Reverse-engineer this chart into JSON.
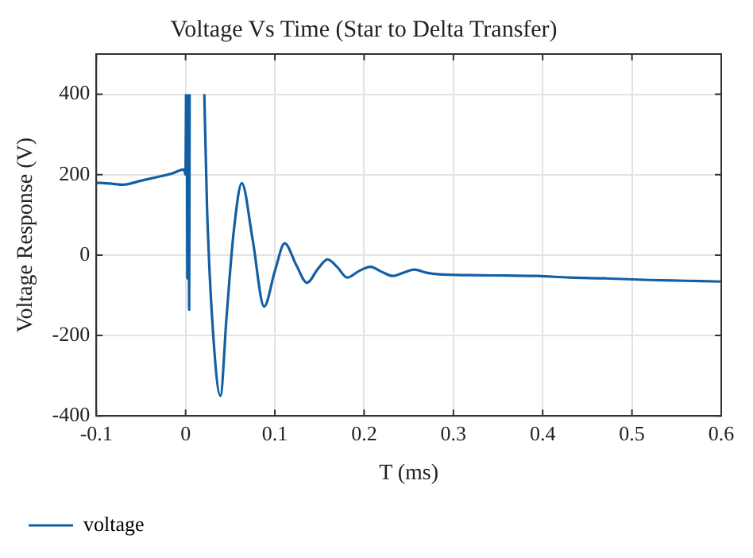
{
  "chart_data": {
    "type": "line",
    "title": "Voltage Vs Time (Star to Delta Transfer)",
    "xlabel": "T (ms)",
    "ylabel": "Voltage Response (V)",
    "xlim": [
      -0.1,
      0.6
    ],
    "xticks": [
      -0.1,
      0,
      0.1,
      0.2,
      0.3,
      0.4,
      0.5,
      0.6
    ],
    "ylim": [
      -400,
      500
    ],
    "yticks": [
      -400,
      -200,
      0,
      200,
      400
    ],
    "grid": true,
    "legend": "bottom",
    "marker": "none",
    "line_style": "solid",
    "series": [
      {
        "name": "voltage",
        "color": "#135fa3",
        "x": [
          -0.1,
          -0.085,
          -0.07,
          -0.05,
          -0.03,
          -0.015,
          -0.002,
          0,
          0.0005,
          0.001,
          0.0015,
          0.002,
          0.0025,
          0.003,
          0.0035,
          0.004,
          0.0045,
          0.006,
          0.011,
          0.017,
          0.021,
          0.024,
          0.031,
          0.039,
          0.046,
          0.054,
          0.063,
          0.075,
          0.088,
          0.1,
          0.111,
          0.124,
          0.136,
          0.148,
          0.159,
          0.17,
          0.181,
          0.194,
          0.207,
          0.22,
          0.232,
          0.244,
          0.256,
          0.27,
          0.284,
          0.32,
          0.36,
          0.395,
          0.43,
          0.47,
          0.519,
          0.56,
          0.6
        ],
        "values": [
          180,
          178,
          175,
          185,
          195,
          203,
          213,
          200,
          400,
          null,
          400,
          -58,
          400,
          null,
          400,
          -136,
          400,
          null,
          null,
          null,
          400,
          120,
          -200,
          -350,
          -150,
          60,
          179,
          40,
          -128,
          -40,
          29,
          -25,
          -69,
          -35,
          -11,
          -30,
          -56,
          -40,
          -29,
          -42,
          -52,
          -44,
          -36,
          -44,
          -48,
          -50,
          -51,
          -52,
          -56,
          -58,
          -62,
          -64,
          -66
        ]
      }
    ]
  }
}
